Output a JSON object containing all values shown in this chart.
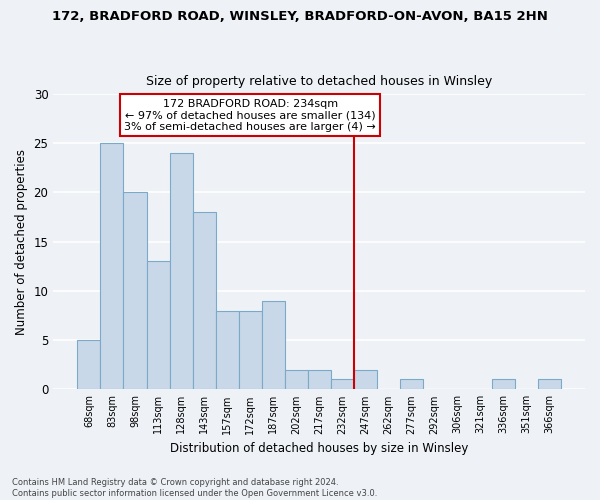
{
  "title1": "172, BRADFORD ROAD, WINSLEY, BRADFORD-ON-AVON, BA15 2HN",
  "title2": "Size of property relative to detached houses in Winsley",
  "xlabel": "Distribution of detached houses by size in Winsley",
  "ylabel": "Number of detached properties",
  "categories": [
    "68sqm",
    "83sqm",
    "98sqm",
    "113sqm",
    "128sqm",
    "143sqm",
    "157sqm",
    "172sqm",
    "187sqm",
    "202sqm",
    "217sqm",
    "232sqm",
    "247sqm",
    "262sqm",
    "277sqm",
    "292sqm",
    "306sqm",
    "321sqm",
    "336sqm",
    "351sqm",
    "366sqm"
  ],
  "values": [
    5,
    25,
    20,
    13,
    24,
    18,
    8,
    8,
    9,
    2,
    2,
    1,
    2,
    0,
    1,
    0,
    0,
    0,
    1,
    0,
    1
  ],
  "bar_color": "#c8d8e8",
  "bar_edge_color": "#7aaac8",
  "vline_x_index": 11.5,
  "vline_color": "#cc0000",
  "annotation_text": "172 BRADFORD ROAD: 234sqm\n← 97% of detached houses are smaller (134)\n3% of semi-detached houses are larger (4) →",
  "annotation_box_color": "#cc0000",
  "ylim": [
    0,
    30
  ],
  "yticks": [
    0,
    5,
    10,
    15,
    20,
    25,
    30
  ],
  "footer": "Contains HM Land Registry data © Crown copyright and database right 2024.\nContains public sector information licensed under the Open Government Licence v3.0.",
  "bg_color": "#eef2f7",
  "grid_color": "#ffffff",
  "figsize": [
    6.0,
    5.0
  ],
  "dpi": 100
}
